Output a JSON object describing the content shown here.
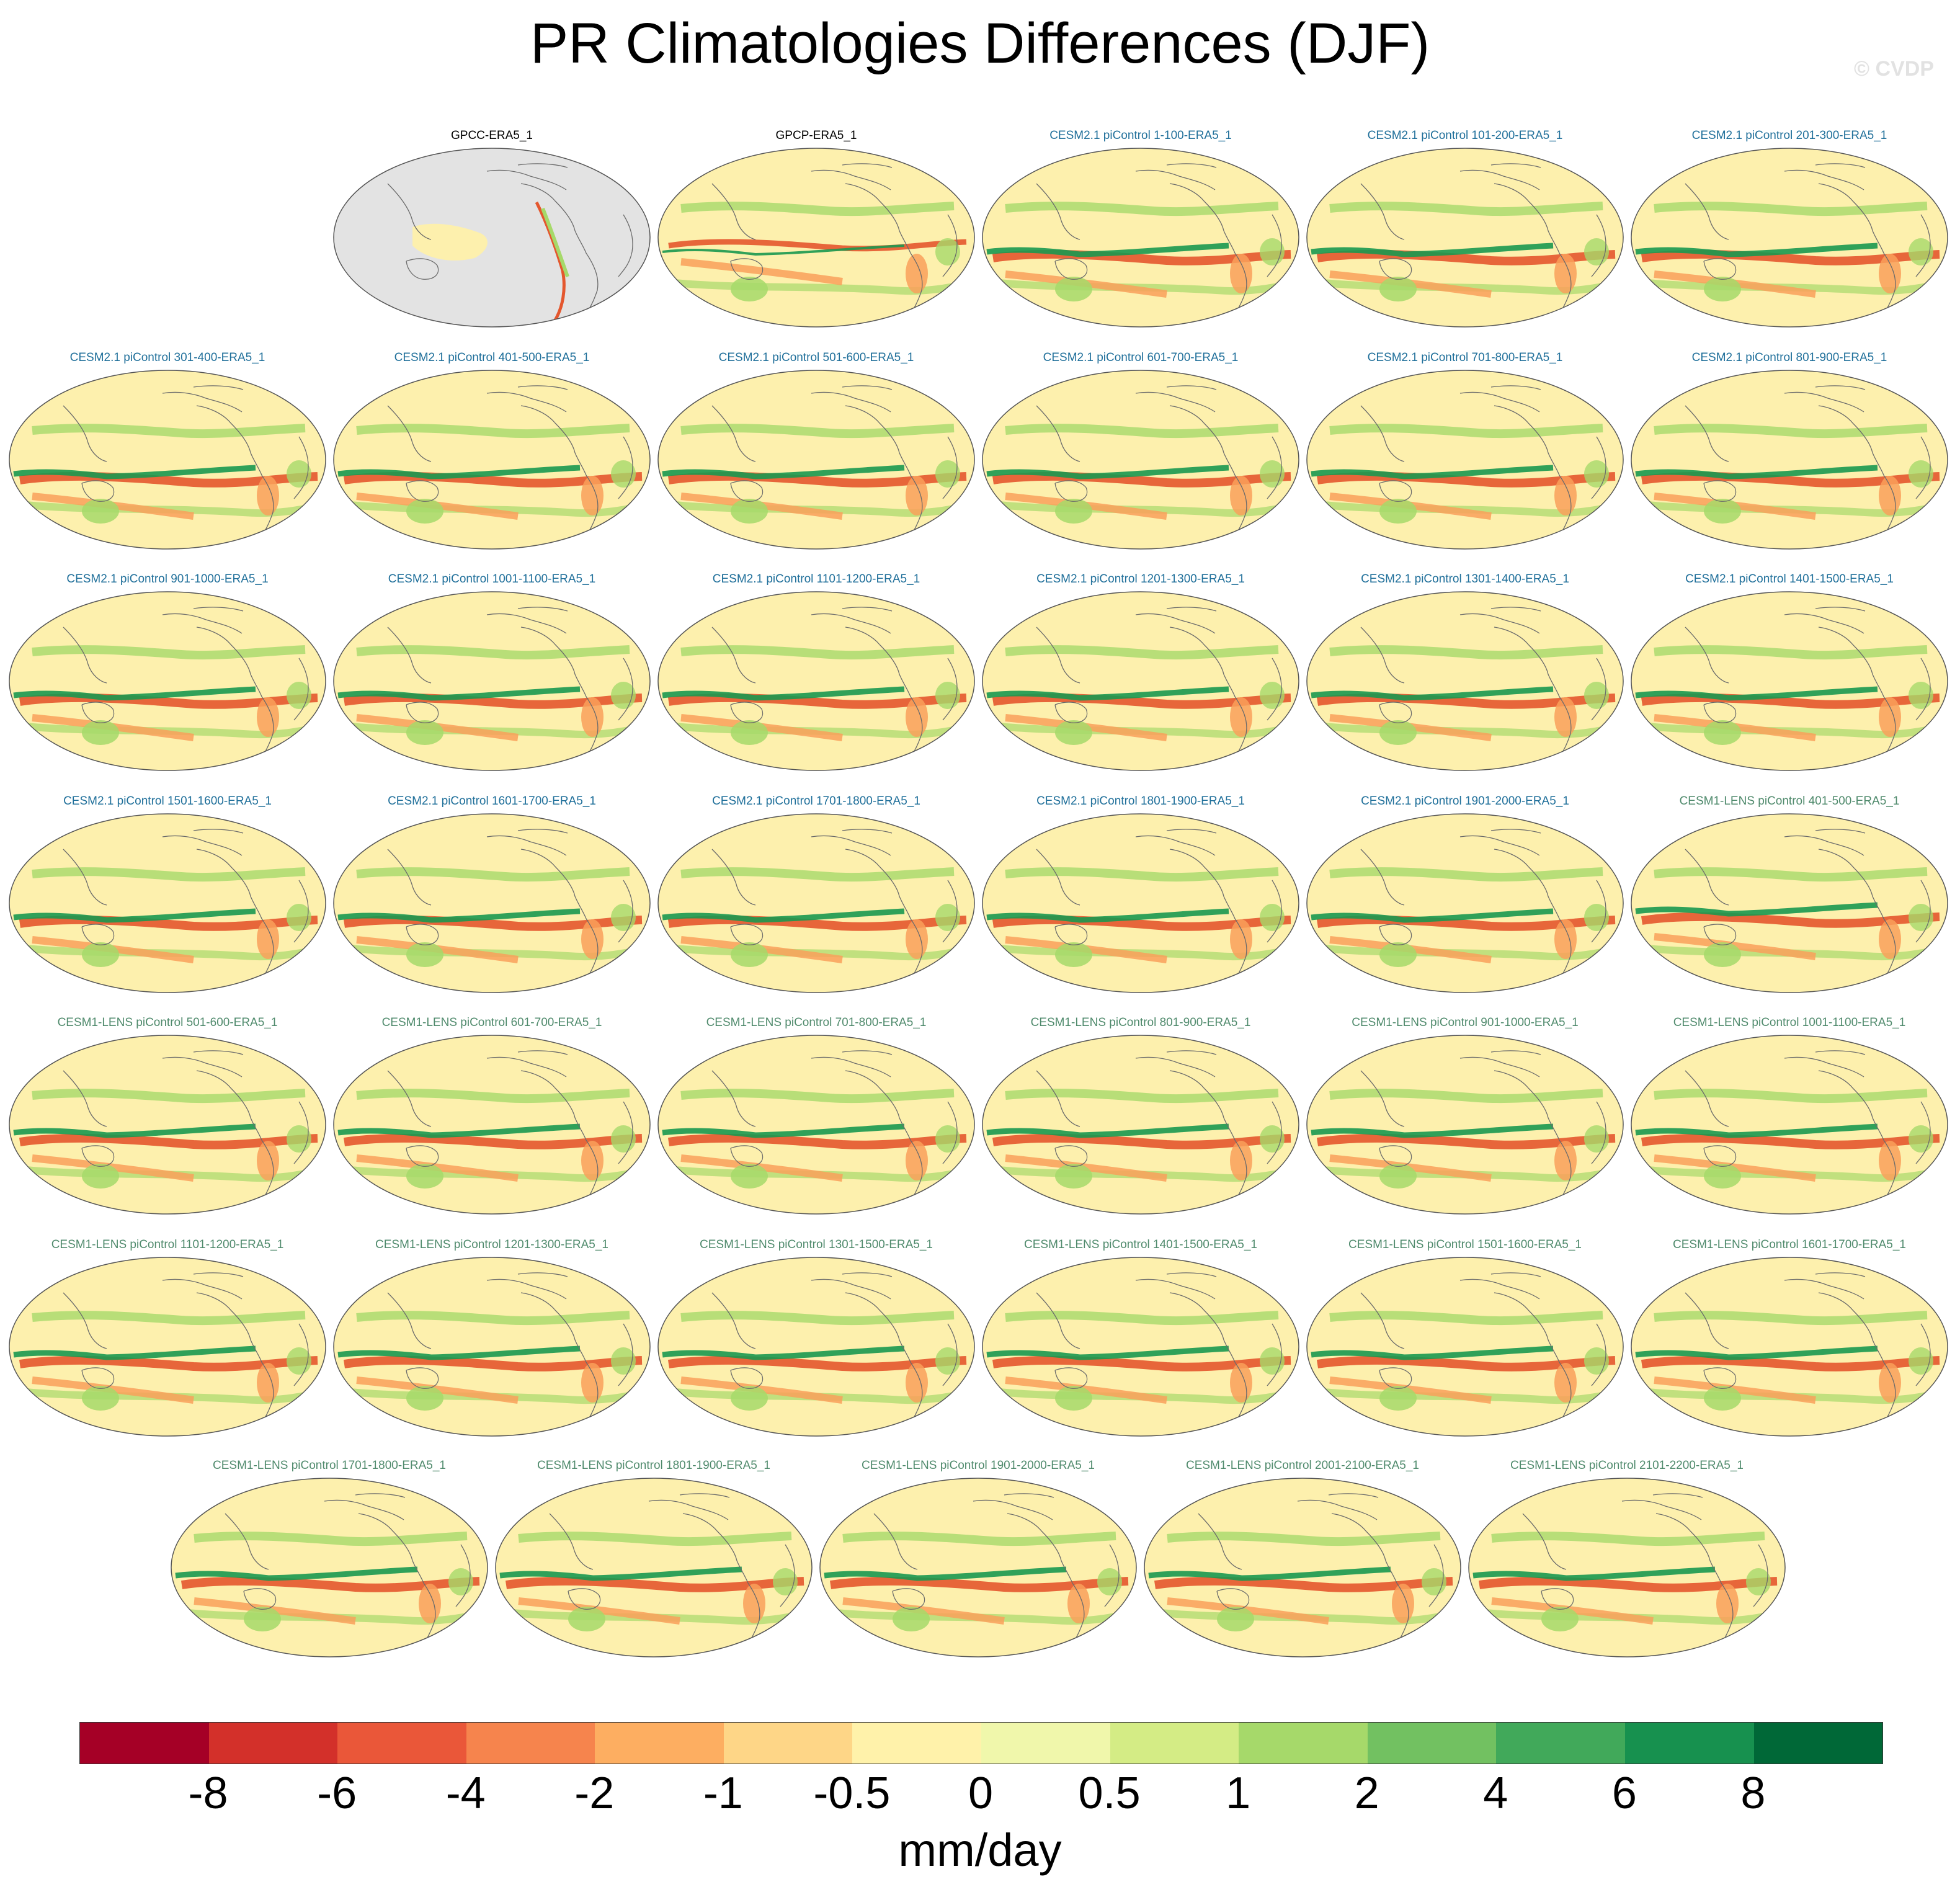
{
  "title": "PR Climatologies Differences (DJF)",
  "watermark": "© CVDP",
  "panels": [
    {
      "title": "GPCC-ERA5_1",
      "group": "obs",
      "land_masked": true
    },
    {
      "title": "GPCP-ERA5_1",
      "group": "obs"
    },
    {
      "title": "CESM2.1 piControl 1-100-ERA5_1",
      "group": "c2"
    },
    {
      "title": "CESM2.1 piControl 101-200-ERA5_1",
      "group": "c2"
    },
    {
      "title": "CESM2.1 piControl 201-300-ERA5_1",
      "group": "c2"
    },
    {
      "title": "CESM2.1 piControl 301-400-ERA5_1",
      "group": "c2"
    },
    {
      "title": "CESM2.1 piControl 401-500-ERA5_1",
      "group": "c2"
    },
    {
      "title": "CESM2.1 piControl 501-600-ERA5_1",
      "group": "c2"
    },
    {
      "title": "CESM2.1 piControl 601-700-ERA5_1",
      "group": "c2"
    },
    {
      "title": "CESM2.1 piControl 701-800-ERA5_1",
      "group": "c2"
    },
    {
      "title": "CESM2.1 piControl 801-900-ERA5_1",
      "group": "c2"
    },
    {
      "title": "CESM2.1 piControl 901-1000-ERA5_1",
      "group": "c2"
    },
    {
      "title": "CESM2.1 piControl 1001-1100-ERA5_1",
      "group": "c2"
    },
    {
      "title": "CESM2.1 piControl 1101-1200-ERA5_1",
      "group": "c2"
    },
    {
      "title": "CESM2.1 piControl 1201-1300-ERA5_1",
      "group": "c2"
    },
    {
      "title": "CESM2.1 piControl 1301-1400-ERA5_1",
      "group": "c2"
    },
    {
      "title": "CESM2.1 piControl 1401-1500-ERA5_1",
      "group": "c2"
    },
    {
      "title": "CESM2.1 piControl 1501-1600-ERA5_1",
      "group": "c2"
    },
    {
      "title": "CESM2.1 piControl 1601-1700-ERA5_1",
      "group": "c2"
    },
    {
      "title": "CESM2.1 piControl 1701-1800-ERA5_1",
      "group": "c2"
    },
    {
      "title": "CESM2.1 piControl 1801-1900-ERA5_1",
      "group": "c2"
    },
    {
      "title": "CESM2.1 piControl 1901-2000-ERA5_1",
      "group": "c2"
    },
    {
      "title": "CESM1-LENS piControl 401-500-ERA5_1",
      "group": "c1"
    },
    {
      "title": "CESM1-LENS piControl 501-600-ERA5_1",
      "group": "c1"
    },
    {
      "title": "CESM1-LENS piControl 601-700-ERA5_1",
      "group": "c1"
    },
    {
      "title": "CESM1-LENS piControl 701-800-ERA5_1",
      "group": "c1"
    },
    {
      "title": "CESM1-LENS piControl 801-900-ERA5_1",
      "group": "c1"
    },
    {
      "title": "CESM1-LENS piControl 901-1000-ERA5_1",
      "group": "c1"
    },
    {
      "title": "CESM1-LENS piControl 1001-1100-ERA5_1",
      "group": "c1"
    },
    {
      "title": "CESM1-LENS piControl 1101-1200-ERA5_1",
      "group": "c1"
    },
    {
      "title": "CESM1-LENS piControl 1201-1300-ERA5_1",
      "group": "c1"
    },
    {
      "title": "CESM1-LENS piControl 1301-1500-ERA5_1",
      "group": "c1"
    },
    {
      "title": "CESM1-LENS piControl 1401-1500-ERA5_1",
      "group": "c1"
    },
    {
      "title": "CESM1-LENS piControl 1501-1600-ERA5_1",
      "group": "c1"
    },
    {
      "title": "CESM1-LENS piControl 1601-1700-ERA5_1",
      "group": "c1"
    },
    {
      "title": "CESM1-LENS piControl 1701-1800-ERA5_1",
      "group": "c1"
    },
    {
      "title": "CESM1-LENS piControl 1801-1900-ERA5_1",
      "group": "c1"
    },
    {
      "title": "CESM1-LENS piControl 1901-2000-ERA5_1",
      "group": "c1"
    },
    {
      "title": "CESM1-LENS piControl 2001-2100-ERA5_1",
      "group": "c1"
    },
    {
      "title": "CESM1-LENS piControl 2101-2200-ERA5_1",
      "group": "c1"
    }
  ],
  "colorbar": {
    "colors": [
      "#a50026",
      "#d3302a",
      "#ea5739",
      "#f6844d",
      "#fdae61",
      "#fed687",
      "#fff2aa",
      "#f0f7ab",
      "#d4ec85",
      "#a6d96a",
      "#72c161",
      "#41a95a",
      "#17914f",
      "#006837"
    ],
    "labels": [
      "-8",
      "-6",
      "-4",
      "-2",
      "-1",
      "-0.5",
      "0",
      "0.5",
      "1",
      "2",
      "4",
      "6",
      "8"
    ],
    "units": "mm/day"
  },
  "palette": {
    "land_mask": "#e3e3e3",
    "background_field": "#fdf0ad",
    "coastline": "#6b6b6b",
    "dry_strong": "#e4572e",
    "dry_weak": "#f9a05a",
    "wet_weak": "#a6d96a",
    "wet_strong": "#1a9850"
  }
}
